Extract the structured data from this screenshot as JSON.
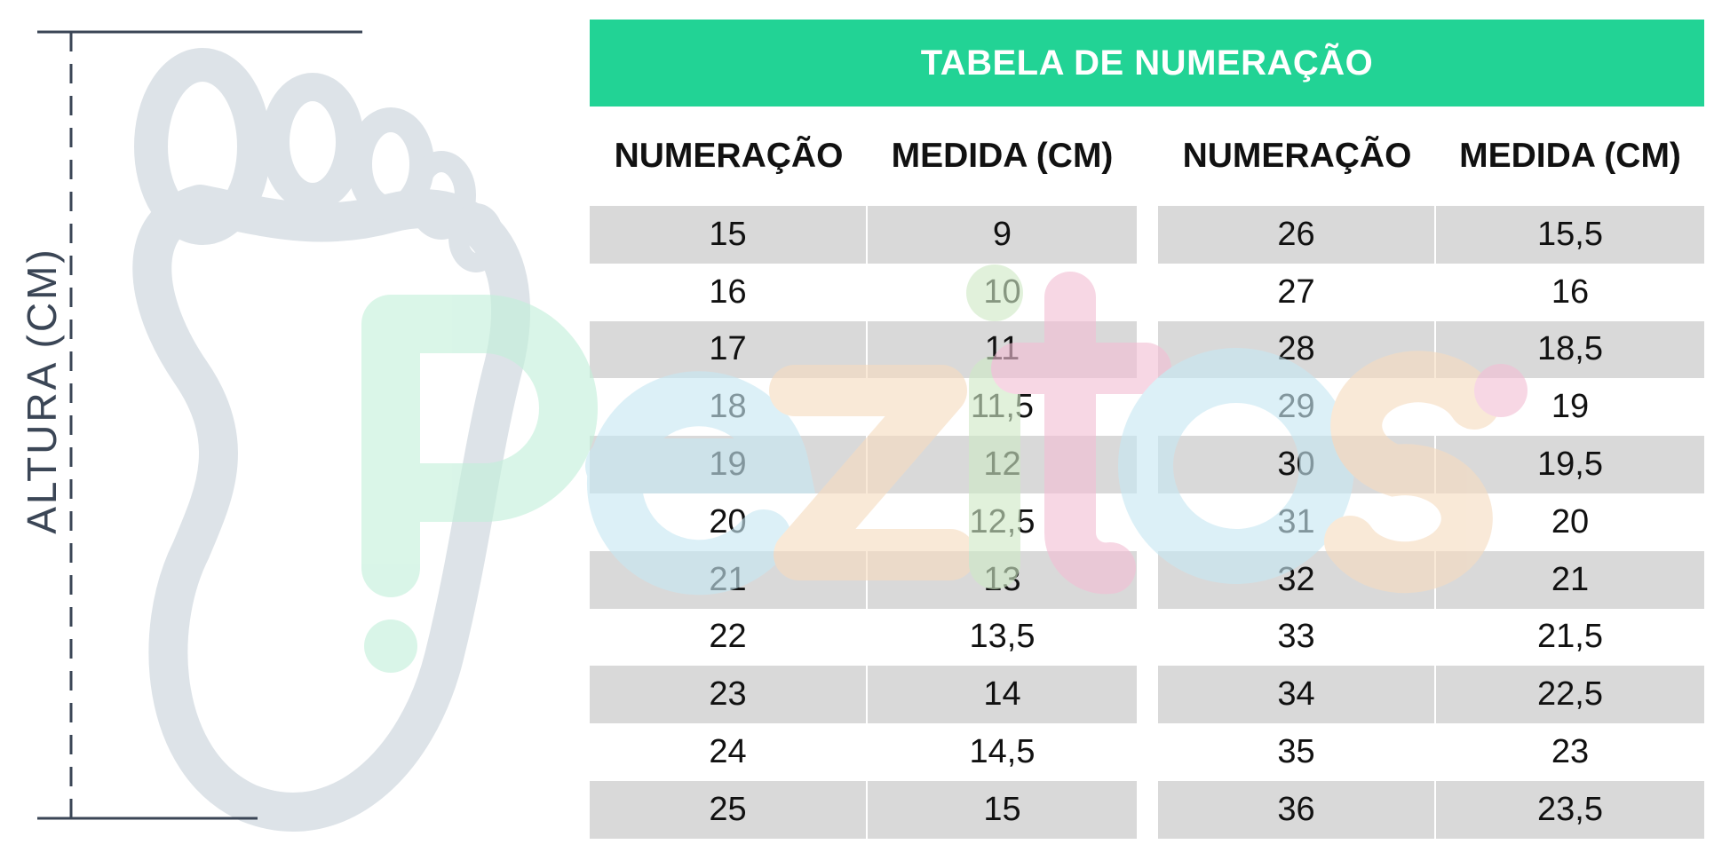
{
  "figure": {
    "axis_label": "ALTURA (CM)",
    "icons": [
      "foot-outline-icon",
      "height-dimension-line"
    ],
    "colors": {
      "foot": "#dde3e8",
      "line": "#3b4656"
    }
  },
  "watermark": {
    "text": "Pezitos",
    "colors": [
      "#cdf2e0",
      "#ccebf5",
      "#f8e1c6",
      "#f5c4d8"
    ]
  },
  "table": {
    "title": "TABELA DE NUMERAÇÃO",
    "headers": [
      "NUMERAÇÃO",
      "MEDIDA (CM)",
      "NUMERAÇÃO",
      "MEDIDA (CM)"
    ],
    "colors": {
      "title_bg": "#22d395",
      "row_shade": "#d9d9d9"
    },
    "rows": [
      {
        "num_a": "15",
        "cm_a": "9",
        "num_b": "26",
        "cm_b": "15,5"
      },
      {
        "num_a": "16",
        "cm_a": "10",
        "num_b": "27",
        "cm_b": "16"
      },
      {
        "num_a": "17",
        "cm_a": "11",
        "num_b": "28",
        "cm_b": "18,5"
      },
      {
        "num_a": "18",
        "cm_a": "11,5",
        "num_b": "29",
        "cm_b": "19"
      },
      {
        "num_a": "19",
        "cm_a": "12",
        "num_b": "30",
        "cm_b": "19,5"
      },
      {
        "num_a": "20",
        "cm_a": "12,5",
        "num_b": "31",
        "cm_b": "20"
      },
      {
        "num_a": "21",
        "cm_a": "13",
        "num_b": "32",
        "cm_b": "21"
      },
      {
        "num_a": "22",
        "cm_a": "13,5",
        "num_b": "33",
        "cm_b": "21,5"
      },
      {
        "num_a": "23",
        "cm_a": "14",
        "num_b": "34",
        "cm_b": "22,5"
      },
      {
        "num_a": "24",
        "cm_a": "14,5",
        "num_b": "35",
        "cm_b": "23"
      },
      {
        "num_a": "25",
        "cm_a": "15",
        "num_b": "36",
        "cm_b": "23,5"
      }
    ]
  }
}
